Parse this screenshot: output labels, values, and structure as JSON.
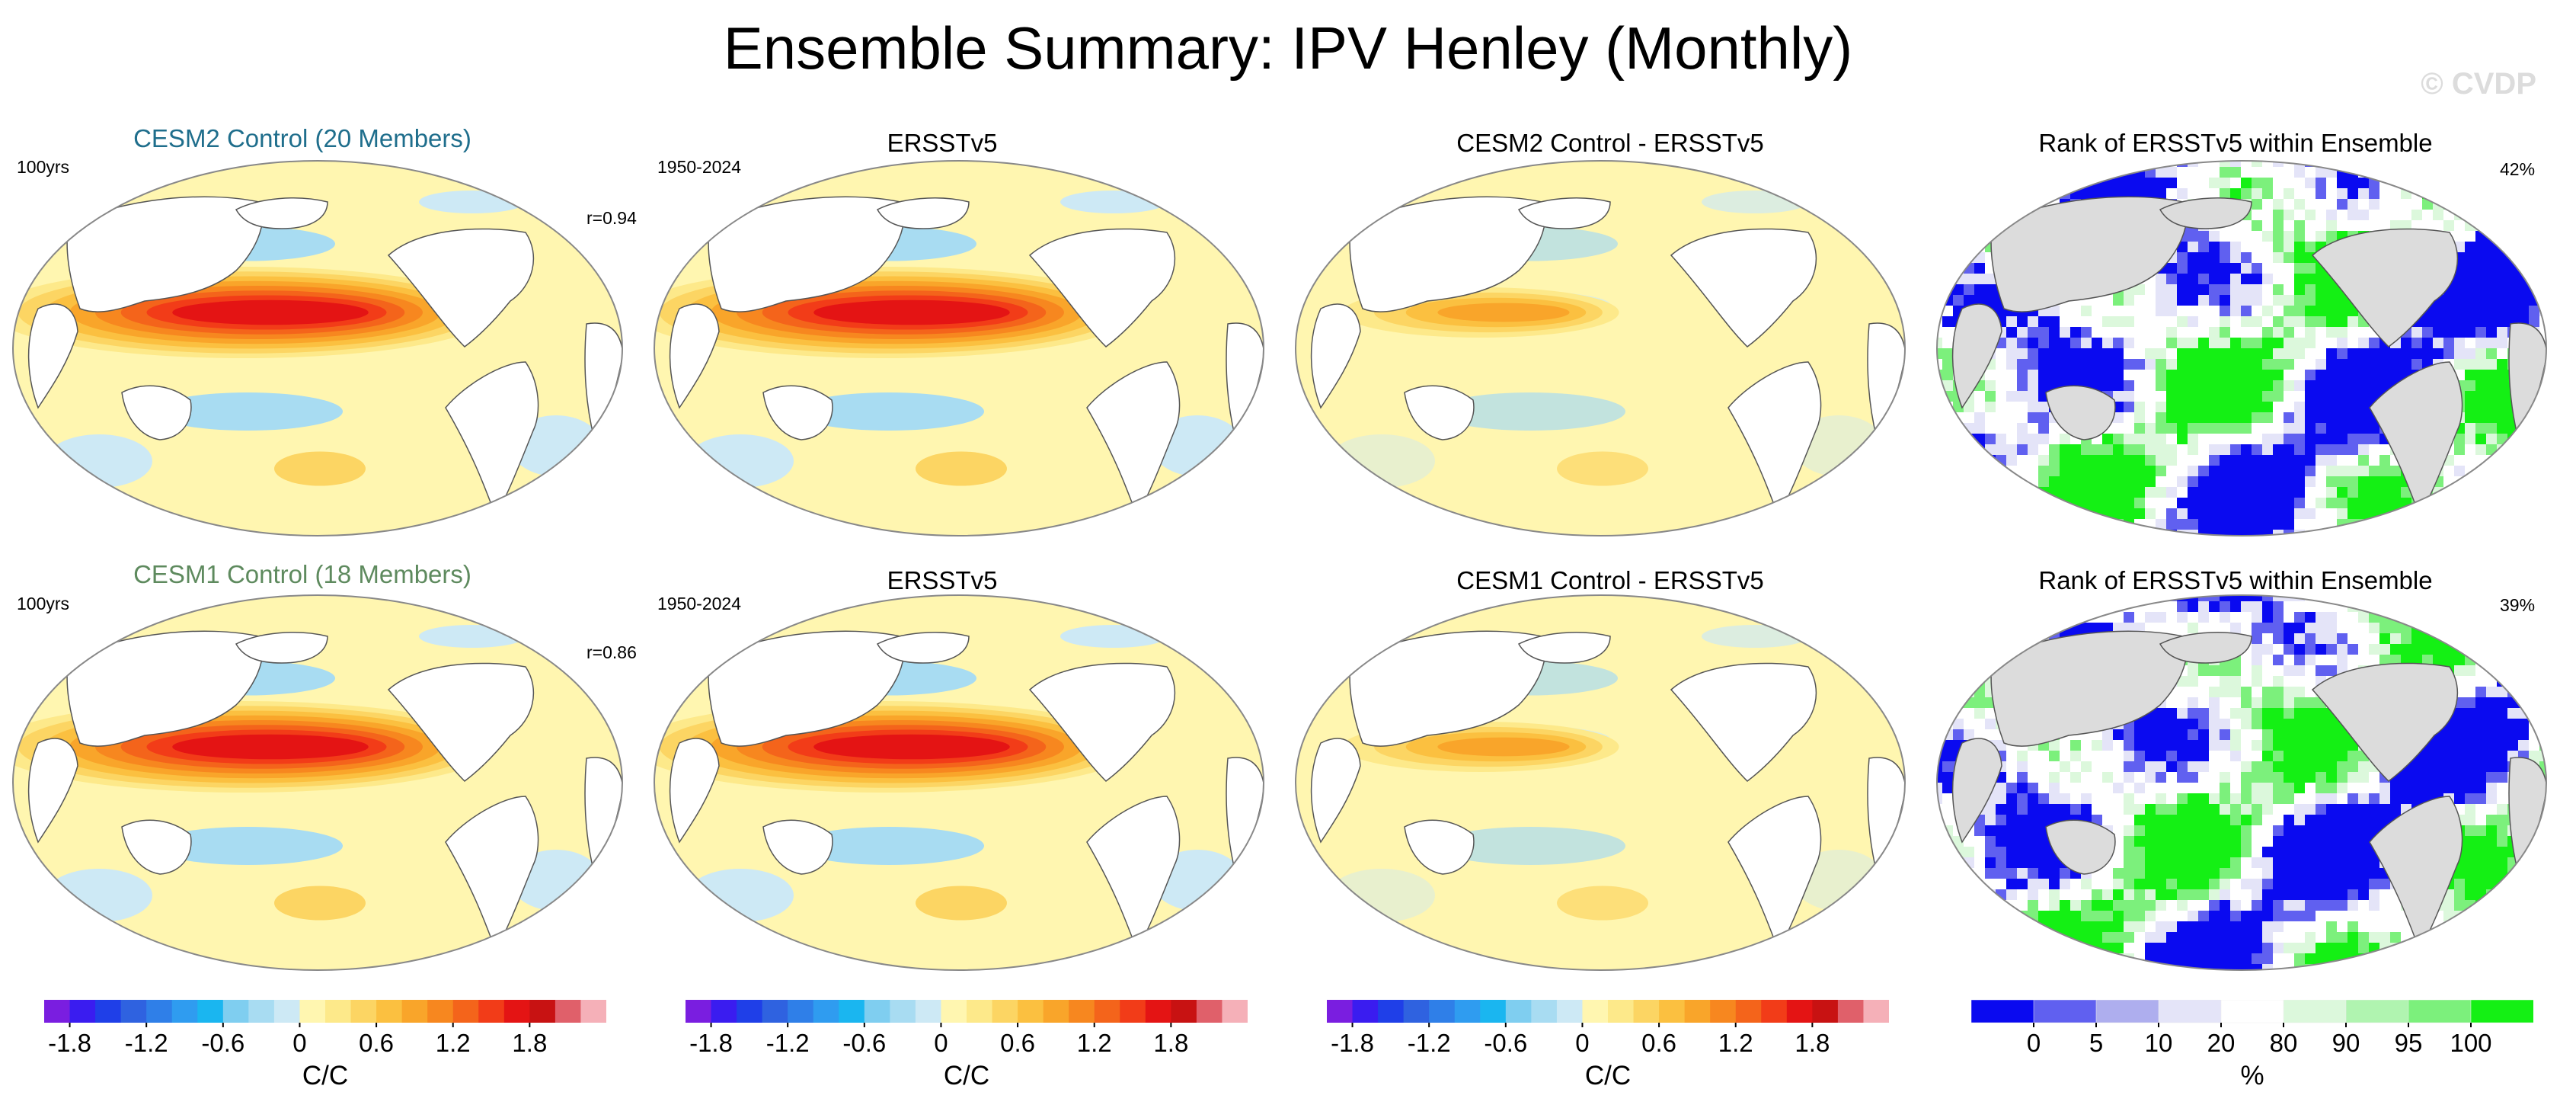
{
  "title": "Ensemble Summary: IPV Henley (Monthly)",
  "watermark": "© CVDP",
  "rows": [
    {
      "panels": [
        {
          "title": "CESM2 Control (20 Members)",
          "title_color": "#1f6e8c",
          "left_label": "100yrs",
          "right_label": "r=0.94"
        },
        {
          "title": "ERSSTv5",
          "left_label": "1950-2024"
        },
        {
          "title": "CESM2 Control - ERSSTv5"
        },
        {
          "title": "Rank of ERSSTv5 within Ensemble",
          "right_label": "42%"
        }
      ]
    },
    {
      "panels": [
        {
          "title": "CESM1 Control (18 Members)",
          "title_color": "#5e8a5e",
          "left_label": "100yrs",
          "right_label": "r=0.86"
        },
        {
          "title": "ERSSTv5",
          "left_label": "1950-2024"
        },
        {
          "title": "CESM1 Control - ERSSTv5"
        },
        {
          "title": "Rank of ERSSTv5 within Ensemble",
          "right_label": "39%"
        }
      ]
    }
  ],
  "colorbars": [
    {
      "ticks": [
        "-1.8",
        "-1.2",
        "-0.6",
        "0",
        "0.6",
        "1.2",
        "1.8"
      ],
      "unit": "C/C"
    },
    {
      "ticks": [
        "-1.8",
        "-1.2",
        "-0.6",
        "0",
        "0.6",
        "1.2",
        "1.8"
      ],
      "unit": "C/C"
    },
    {
      "ticks": [
        "-1.8",
        "-1.2",
        "-0.6",
        "0",
        "0.6",
        "1.2",
        "1.8"
      ],
      "unit": "C/C"
    },
    {
      "ticks": [
        "0",
        "5",
        "10",
        "20",
        "80",
        "90",
        "95",
        "100"
      ],
      "unit": "%"
    }
  ],
  "colors": {
    "diverging": [
      "#7a1ee0",
      "#3a1cf0",
      "#1f3fe8",
      "#2f62e0",
      "#2f7fe8",
      "#2f9cf0",
      "#1ab6f0",
      "#7fcef0",
      "#a8dcf2",
      "#cde9f5",
      "#fff6b0",
      "#fde98a",
      "#fcd563",
      "#fbc040",
      "#f9a52a",
      "#f7871f",
      "#f4641b",
      "#f23c18",
      "#e41414",
      "#c81212",
      "#e0606a",
      "#f5b0b8"
    ],
    "rank": [
      "#0a0af0",
      "#6060f0",
      "#aeaeee",
      "#e4e4f8",
      "#ffffff",
      "#dcf8dc",
      "#b0f4b0",
      "#7cf07c",
      "#14f014"
    ],
    "land": "#dcdcdc"
  }
}
